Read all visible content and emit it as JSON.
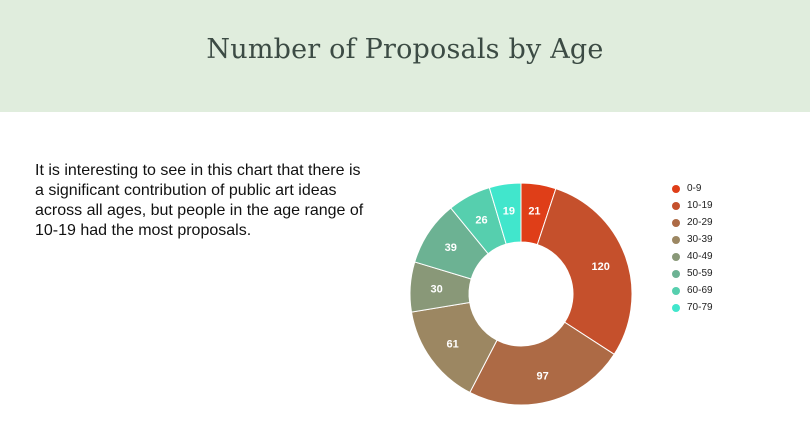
{
  "header": {
    "title": "Number of Proposals by Age"
  },
  "description": "It is interesting to see in this chart that there is a significant contribution of public art ideas across all ages, but people in the age range of 10-19 had the most proposals.",
  "chart_data": {
    "type": "pie",
    "donut": true,
    "title": "",
    "legend_position": "right",
    "categories": [
      "0-9",
      "10-19",
      "20-29",
      "30-39",
      "40-49",
      "50-59",
      "60-69",
      "70-79"
    ],
    "values": [
      21,
      120,
      97,
      61,
      30,
      39,
      26,
      19
    ],
    "colors": [
      "#df3e18",
      "#c5502c",
      "#ad6a45",
      "#9c8762",
      "#899878",
      "#6cb293",
      "#56cfae",
      "#41e6cc"
    ]
  }
}
